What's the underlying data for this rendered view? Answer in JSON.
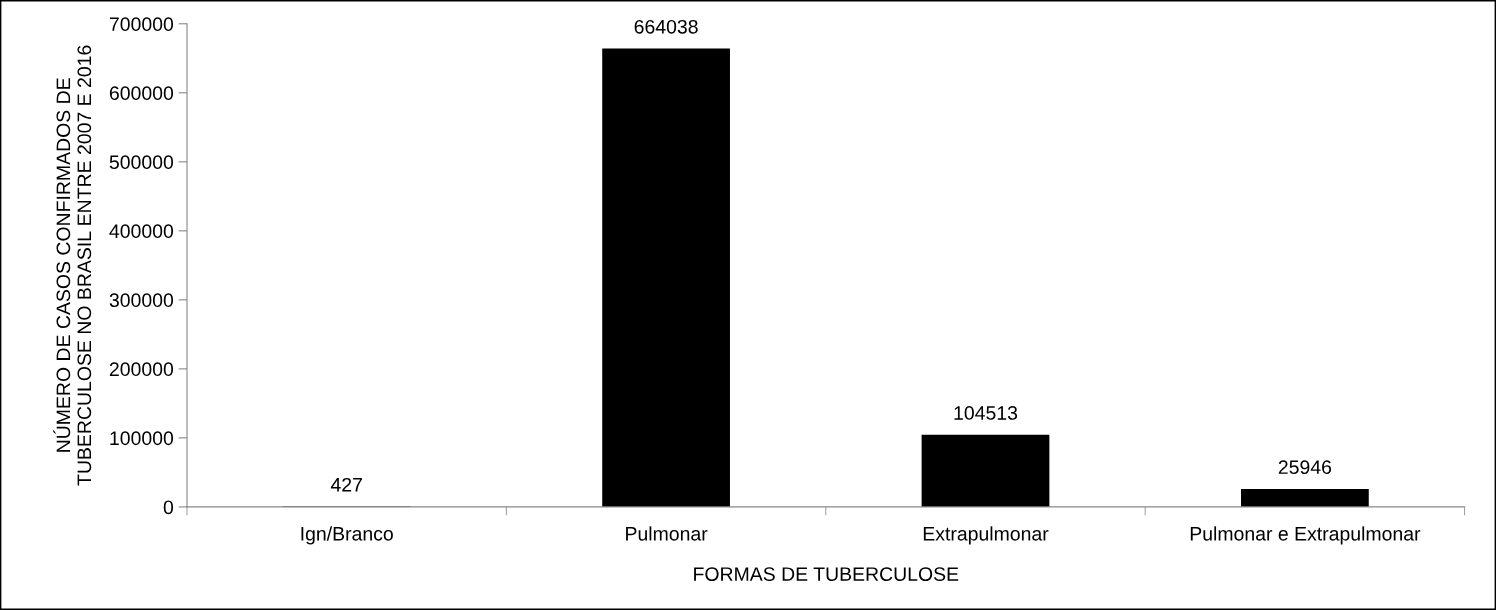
{
  "chart_data": {
    "type": "bar",
    "xlabel": "FORMAS DE TUBERCULOSE",
    "ylabel": "NÚMERO DE CASOS CONFIRMADOS DE\nTUBERCULOSE NO BRASIL ENTRE 2007 E 2016",
    "categories": [
      "Ign/Branco",
      "Pulmonar",
      "Extrapulmonar",
      "Pulmonar e Extrapulmonar"
    ],
    "values": [
      427,
      664038,
      104513,
      25946
    ],
    "color": "#000000",
    "ylim": [
      0,
      700000
    ],
    "yticks": [
      0,
      100000,
      200000,
      300000,
      400000,
      500000,
      600000,
      700000
    ],
    "data_labels": true,
    "grid": false,
    "legend": false
  }
}
